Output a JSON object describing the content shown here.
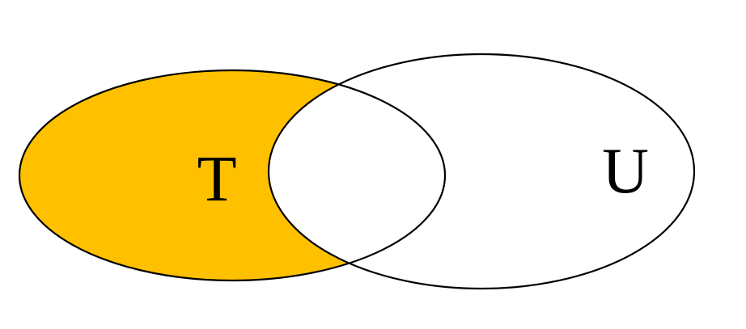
{
  "diagram": {
    "type": "venn",
    "sets": [
      {
        "id": "T",
        "label": "T"
      },
      {
        "id": "U",
        "label": "U"
      }
    ],
    "shaded_region": "T minus U",
    "colors": {
      "shade": "#FFC000",
      "outline": "#000000",
      "background": "#FFFFFF"
    }
  }
}
